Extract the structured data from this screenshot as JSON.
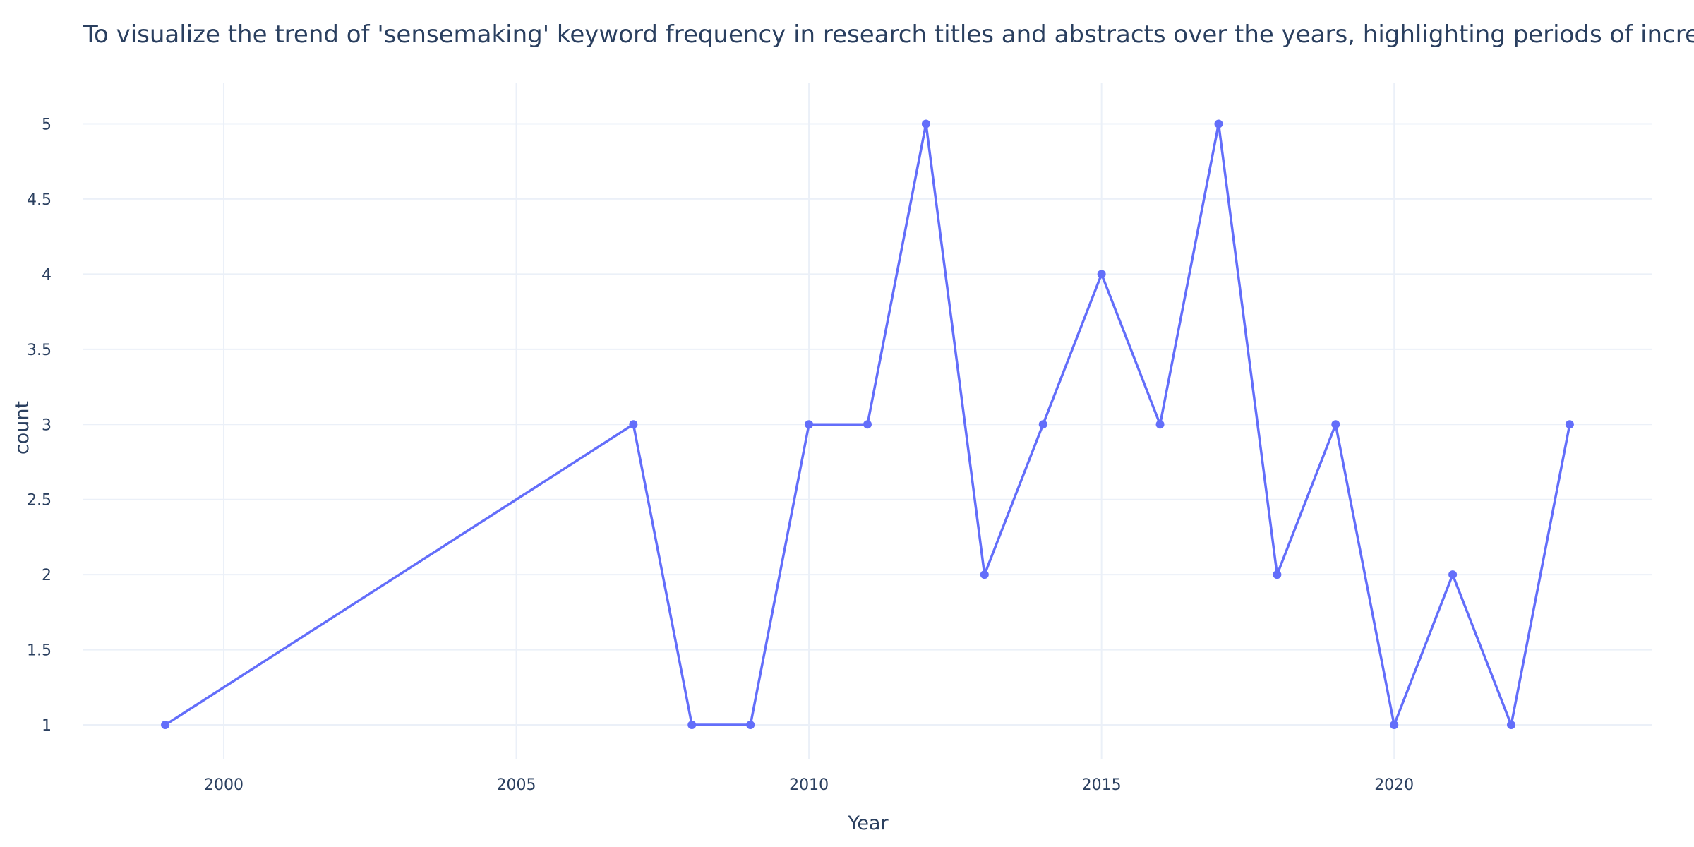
{
  "chart_data": {
    "type": "line",
    "title": "To visualize the trend of 'sensemaking' keyword frequency in research titles and abstracts over the years, highlighting periods of increased interest.",
    "xlabel": "Year",
    "ylabel": "count",
    "xlim": [
      1997.6,
      2024.4
    ],
    "ylim": [
      0.77,
      5.27
    ],
    "x_ticks": [
      2000,
      2005,
      2010,
      2015,
      2020
    ],
    "y_ticks": [
      1,
      1.5,
      2,
      2.5,
      3,
      3.5,
      4,
      4.5,
      5
    ],
    "grid": true,
    "legend": "none",
    "series": [
      {
        "color": "#636efa",
        "points": [
          {
            "x": 1999,
            "y": 1
          },
          {
            "x": 2007,
            "y": 3
          },
          {
            "x": 2008,
            "y": 1
          },
          {
            "x": 2009,
            "y": 1
          },
          {
            "x": 2010,
            "y": 3
          },
          {
            "x": 2011,
            "y": 3
          },
          {
            "x": 2012,
            "y": 5
          },
          {
            "x": 2013,
            "y": 2
          },
          {
            "x": 2014,
            "y": 3
          },
          {
            "x": 2015,
            "y": 4
          },
          {
            "x": 2016,
            "y": 3
          },
          {
            "x": 2017,
            "y": 5
          },
          {
            "x": 2018,
            "y": 2
          },
          {
            "x": 2019,
            "y": 3
          },
          {
            "x": 2020,
            "y": 1
          },
          {
            "x": 2021,
            "y": 2
          },
          {
            "x": 2022,
            "y": 1
          },
          {
            "x": 2023,
            "y": 3
          }
        ]
      }
    ]
  }
}
